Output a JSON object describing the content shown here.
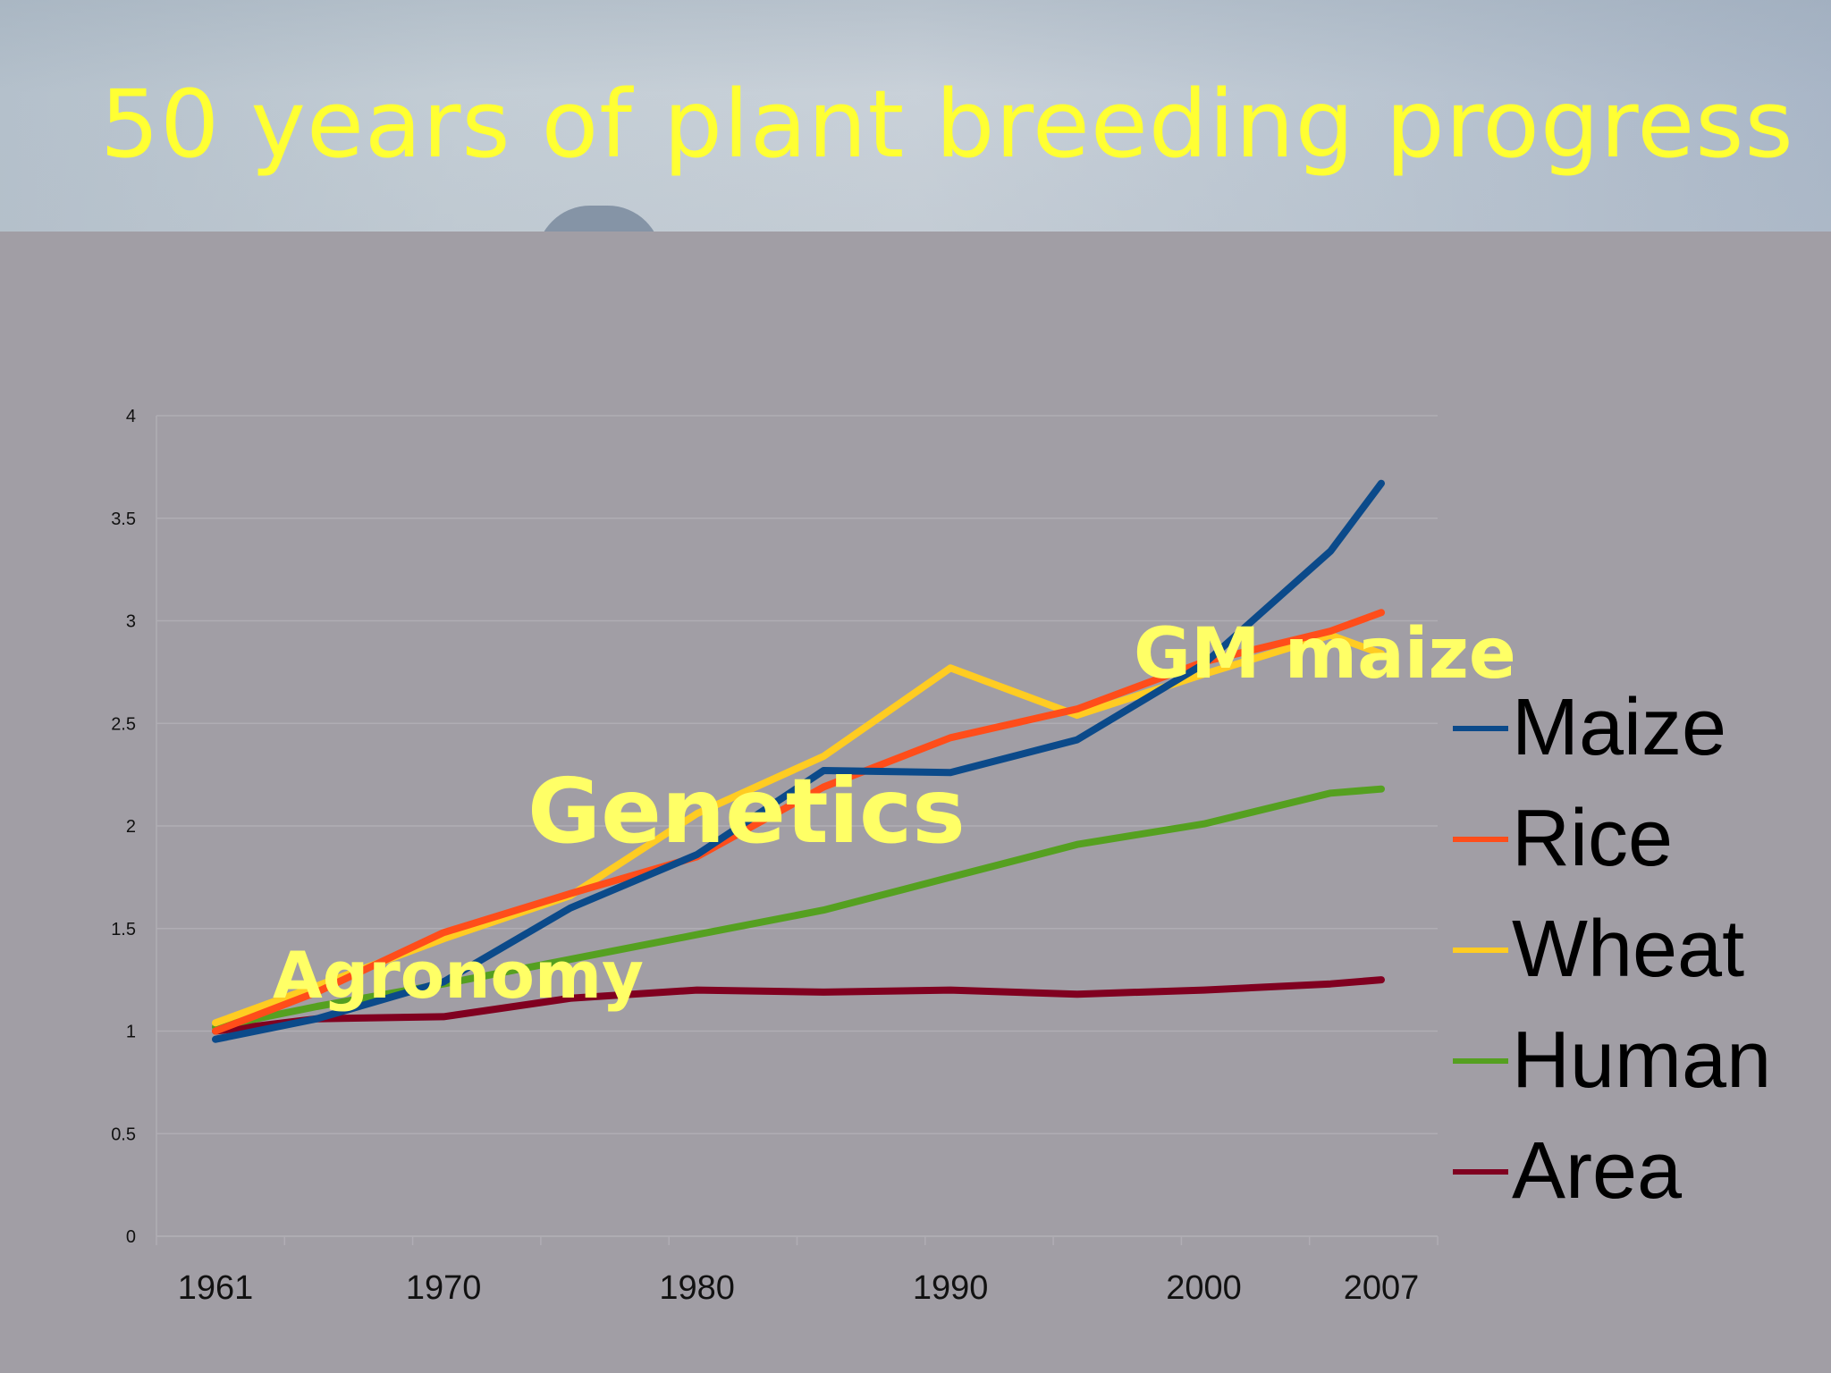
{
  "title": "50 years of plant breeding progress",
  "annotations": {
    "gm_maize": "GM maize",
    "genetics": "Genetics",
    "agronomy": "Agronomy"
  },
  "chart_data": {
    "type": "line",
    "title": "",
    "xlabel": "",
    "ylabel": "",
    "x": [
      1961,
      1965,
      1970,
      1975,
      1980,
      1985,
      1990,
      1995,
      2000,
      2005,
      2007
    ],
    "x_tick_labels": [
      "1961",
      "1970",
      "1980",
      "1990",
      "2000",
      "2007"
    ],
    "x_tick_positions": [
      1961,
      1970,
      1980,
      1990,
      2000,
      2007
    ],
    "ylim": [
      0,
      4
    ],
    "y_ticks": [
      "0",
      "0.5",
      "1",
      "1.5",
      "2",
      "2.5",
      "3",
      "3.5",
      "4"
    ],
    "grid": true,
    "legend": "right",
    "series": [
      {
        "name": "Maize",
        "color": "#0b4a8a",
        "values": [
          0.96,
          1.06,
          1.24,
          1.6,
          1.86,
          2.27,
          2.26,
          2.42,
          2.79,
          3.34,
          3.67
        ]
      },
      {
        "name": "Rice",
        "color": "#ff4d1a",
        "values": [
          1.0,
          1.19,
          1.48,
          1.67,
          1.85,
          2.19,
          2.43,
          2.57,
          2.8,
          2.95,
          3.04
        ]
      },
      {
        "name": "Wheat",
        "color": "#ffcc22",
        "values": [
          1.04,
          1.22,
          1.45,
          1.66,
          2.06,
          2.34,
          2.77,
          2.54,
          2.74,
          2.93,
          2.84
        ]
      },
      {
        "name": "Human",
        "color": "#55a020",
        "values": [
          1.02,
          1.12,
          1.23,
          1.35,
          1.47,
          1.59,
          1.75,
          1.91,
          2.01,
          2.16,
          2.18
        ]
      },
      {
        "name": "Area",
        "color": "#800020",
        "values": [
          1.0,
          1.06,
          1.07,
          1.16,
          1.2,
          1.19,
          1.2,
          1.18,
          1.2,
          1.23,
          1.25
        ]
      }
    ]
  }
}
